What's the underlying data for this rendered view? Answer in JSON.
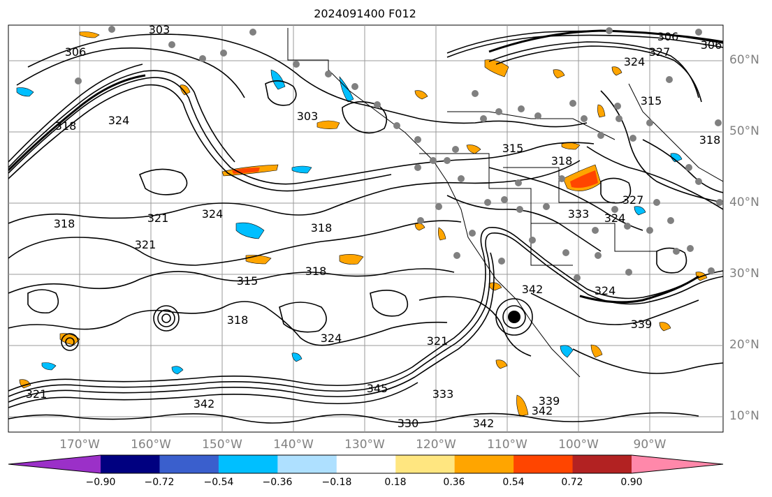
{
  "title": "2024091400 F012",
  "lat_labels": [
    "60°N",
    "50°N",
    "40°N",
    "30°N",
    "20°N",
    "10°N"
  ],
  "lon_labels": [
    "170°W",
    "160°W",
    "150°W",
    "140°W",
    "130°W",
    "120°W",
    "110°W",
    "100°W",
    "90°W"
  ],
  "contour_labels": [
    "303",
    "306",
    "306",
    "306",
    "327",
    "324",
    "315",
    "318",
    "321",
    "324",
    "318",
    "318",
    "324",
    "321",
    "318",
    "315",
    "318",
    "324",
    "321",
    "342",
    "345",
    "339",
    "342",
    "342",
    "330",
    "333",
    "321",
    "342",
    "339",
    "324",
    "318",
    "333",
    "324",
    "327",
    "303",
    "315",
    "318"
  ],
  "colorbar": {
    "ticks": [
      "−0.90",
      "−0.72",
      "−0.54",
      "−0.36",
      "−0.18",
      "0.18",
      "0.36",
      "0.54",
      "0.72",
      "0.90"
    ],
    "colors": [
      "#9b30c8",
      "#000080",
      "#3a5fcd",
      "#00bfff",
      "#aee0ff",
      "#ffffff",
      "#ffe680",
      "#ffa500",
      "#ff4500",
      "#b22222",
      "#ff88aa"
    ]
  }
}
